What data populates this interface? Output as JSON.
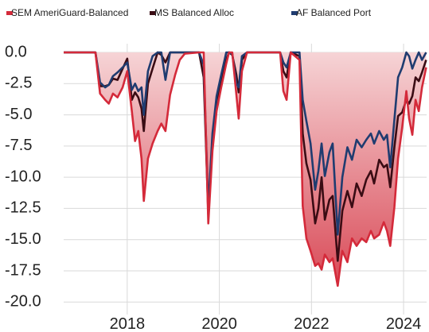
{
  "chart_data": {
    "type": "line",
    "x": [
      2016.62,
      2017.31,
      2017.41,
      2017.52,
      2017.6,
      2017.69,
      2017.79,
      2017.9,
      2018.0,
      2018.1,
      2018.17,
      2018.24,
      2018.31,
      2018.36,
      2018.45,
      2018.55,
      2018.66,
      2018.74,
      2018.83,
      2018.93,
      2019.04,
      2019.14,
      2019.25,
      2019.56,
      2019.66,
      2019.76,
      2019.85,
      2019.94,
      2020.04,
      2020.15,
      2020.21,
      2020.28,
      2020.37,
      2020.42,
      2020.49,
      2020.6,
      2021.32,
      2021.39,
      2021.46,
      2021.55,
      2021.74,
      2021.81,
      2021.89,
      2021.98,
      2022.08,
      2022.15,
      2022.22,
      2022.29,
      2022.39,
      2022.46,
      2022.57,
      2022.67,
      2022.78,
      2022.88,
      2022.98,
      2023.09,
      2023.19,
      2023.29,
      2023.36,
      2023.47,
      2023.57,
      2023.64,
      2023.71,
      2023.8,
      2023.88,
      2023.97,
      2024.06,
      2024.12,
      2024.19,
      2024.26,
      2024.33,
      2024.4,
      2024.49
    ],
    "series": [
      {
        "name": "SEM AmeriGuard-Balanced",
        "color": "#d42a3a",
        "fill": true,
        "values": [
          0,
          0,
          -3.3,
          -3.8,
          -4.1,
          -3.3,
          -3.6,
          -2.8,
          -1.5,
          -4.7,
          -7.1,
          -6.3,
          -8.5,
          -11.9,
          -8.5,
          -7.3,
          -6.3,
          -5.7,
          -6.3,
          -3.4,
          -1.8,
          -0.6,
          -0.1,
          0,
          0,
          -13.7,
          -7.9,
          -4.7,
          -2.8,
          -0.9,
          0,
          0,
          -3.4,
          -5.3,
          -1.5,
          0,
          0,
          -3.1,
          -3.8,
          0,
          -0.6,
          -12.3,
          -14.9,
          -15.9,
          -17.1,
          -16.9,
          -17.4,
          -16.2,
          -16.8,
          -16.5,
          -18.7,
          -15.9,
          -16.8,
          -14.9,
          -15.5,
          -14.9,
          -15.2,
          -14.3,
          -14.9,
          -14.6,
          -13.6,
          -14.3,
          -15.5,
          -12.4,
          -8.5,
          -6.0,
          -3.1,
          -5.3,
          -6.6,
          -3.8,
          -4.7,
          -2.8,
          -1.2
        ]
      },
      {
        "name": "MS Balanced Alloc",
        "color": "#3a0c14",
        "values": [
          0,
          0,
          -2.7,
          -2.7,
          -2.6,
          -2.1,
          -2.2,
          -1.3,
          -0.5,
          -3.8,
          -3.2,
          -3.6,
          -4.5,
          -6.3,
          -2.5,
          -1.3,
          0,
          -0.2,
          -0.8,
          0,
          0,
          0,
          0,
          0,
          -2.0,
          -13.0,
          -7.5,
          -3.8,
          -2.5,
          -0.6,
          0,
          -0.2,
          -1.8,
          -3.2,
          -0.6,
          0,
          0,
          -1.5,
          -2.0,
          0,
          -0.3,
          -6.5,
          -8.9,
          -10.2,
          -13.7,
          -12.5,
          -10.0,
          -13.4,
          -11.8,
          -11.5,
          -16.7,
          -12.7,
          -11.1,
          -12.4,
          -10.5,
          -11.5,
          -10.2,
          -9.5,
          -10.5,
          -8.6,
          -9.2,
          -9.0,
          -10.8,
          -7.6,
          -5.1,
          -4.8,
          -3.8,
          -4.1,
          -3.5,
          -2.0,
          -2.3,
          -1.6,
          -0.6
        ]
      },
      {
        "name": "AF Balanced Port",
        "color": "#1f3c70",
        "values": [
          0,
          0,
          -2.4,
          -2.8,
          -2.6,
          -1.9,
          -1.6,
          -1.2,
          -0.8,
          -3.0,
          -2.5,
          -3.1,
          -2.8,
          -5.0,
          -1.5,
          -0.3,
          0,
          0,
          -2.2,
          0,
          0,
          0,
          0,
          0,
          -1.0,
          -12.5,
          -6.5,
          -3.5,
          -1.8,
          0,
          0,
          -0.1,
          -2.5,
          -2.8,
          -0.3,
          0,
          0,
          -0.8,
          -1.2,
          0,
          0,
          -3.8,
          -5.5,
          -7.3,
          -11.0,
          -9.5,
          -7.3,
          -9.9,
          -8.0,
          -7.3,
          -14.6,
          -10.0,
          -7.6,
          -8.6,
          -7.0,
          -7.6,
          -7.0,
          -6.5,
          -7.3,
          -6.3,
          -7.0,
          -6.6,
          -9.2,
          -5.4,
          -2.0,
          -1.2,
          0,
          -0.3,
          -1.3,
          -0.6,
          0,
          -0.6,
          0
        ]
      }
    ],
    "xlim": [
      2016.62,
      2024.5
    ],
    "xticks": [
      2018,
      2020,
      2022,
      2024
    ],
    "ylim": [
      -21,
      0.7
    ],
    "yticks": [
      {
        "value": 0,
        "label": "0.0"
      },
      -2.5,
      {
        "value": -5,
        "label": "-5.0"
      },
      -7.5,
      {
        "value": -10,
        "label": "-10.0"
      },
      -12.5,
      {
        "value": -15,
        "label": "-15.0"
      },
      -17.5,
      {
        "value": -20,
        "label": "-20.0"
      }
    ],
    "grid": true,
    "legend": "top"
  }
}
